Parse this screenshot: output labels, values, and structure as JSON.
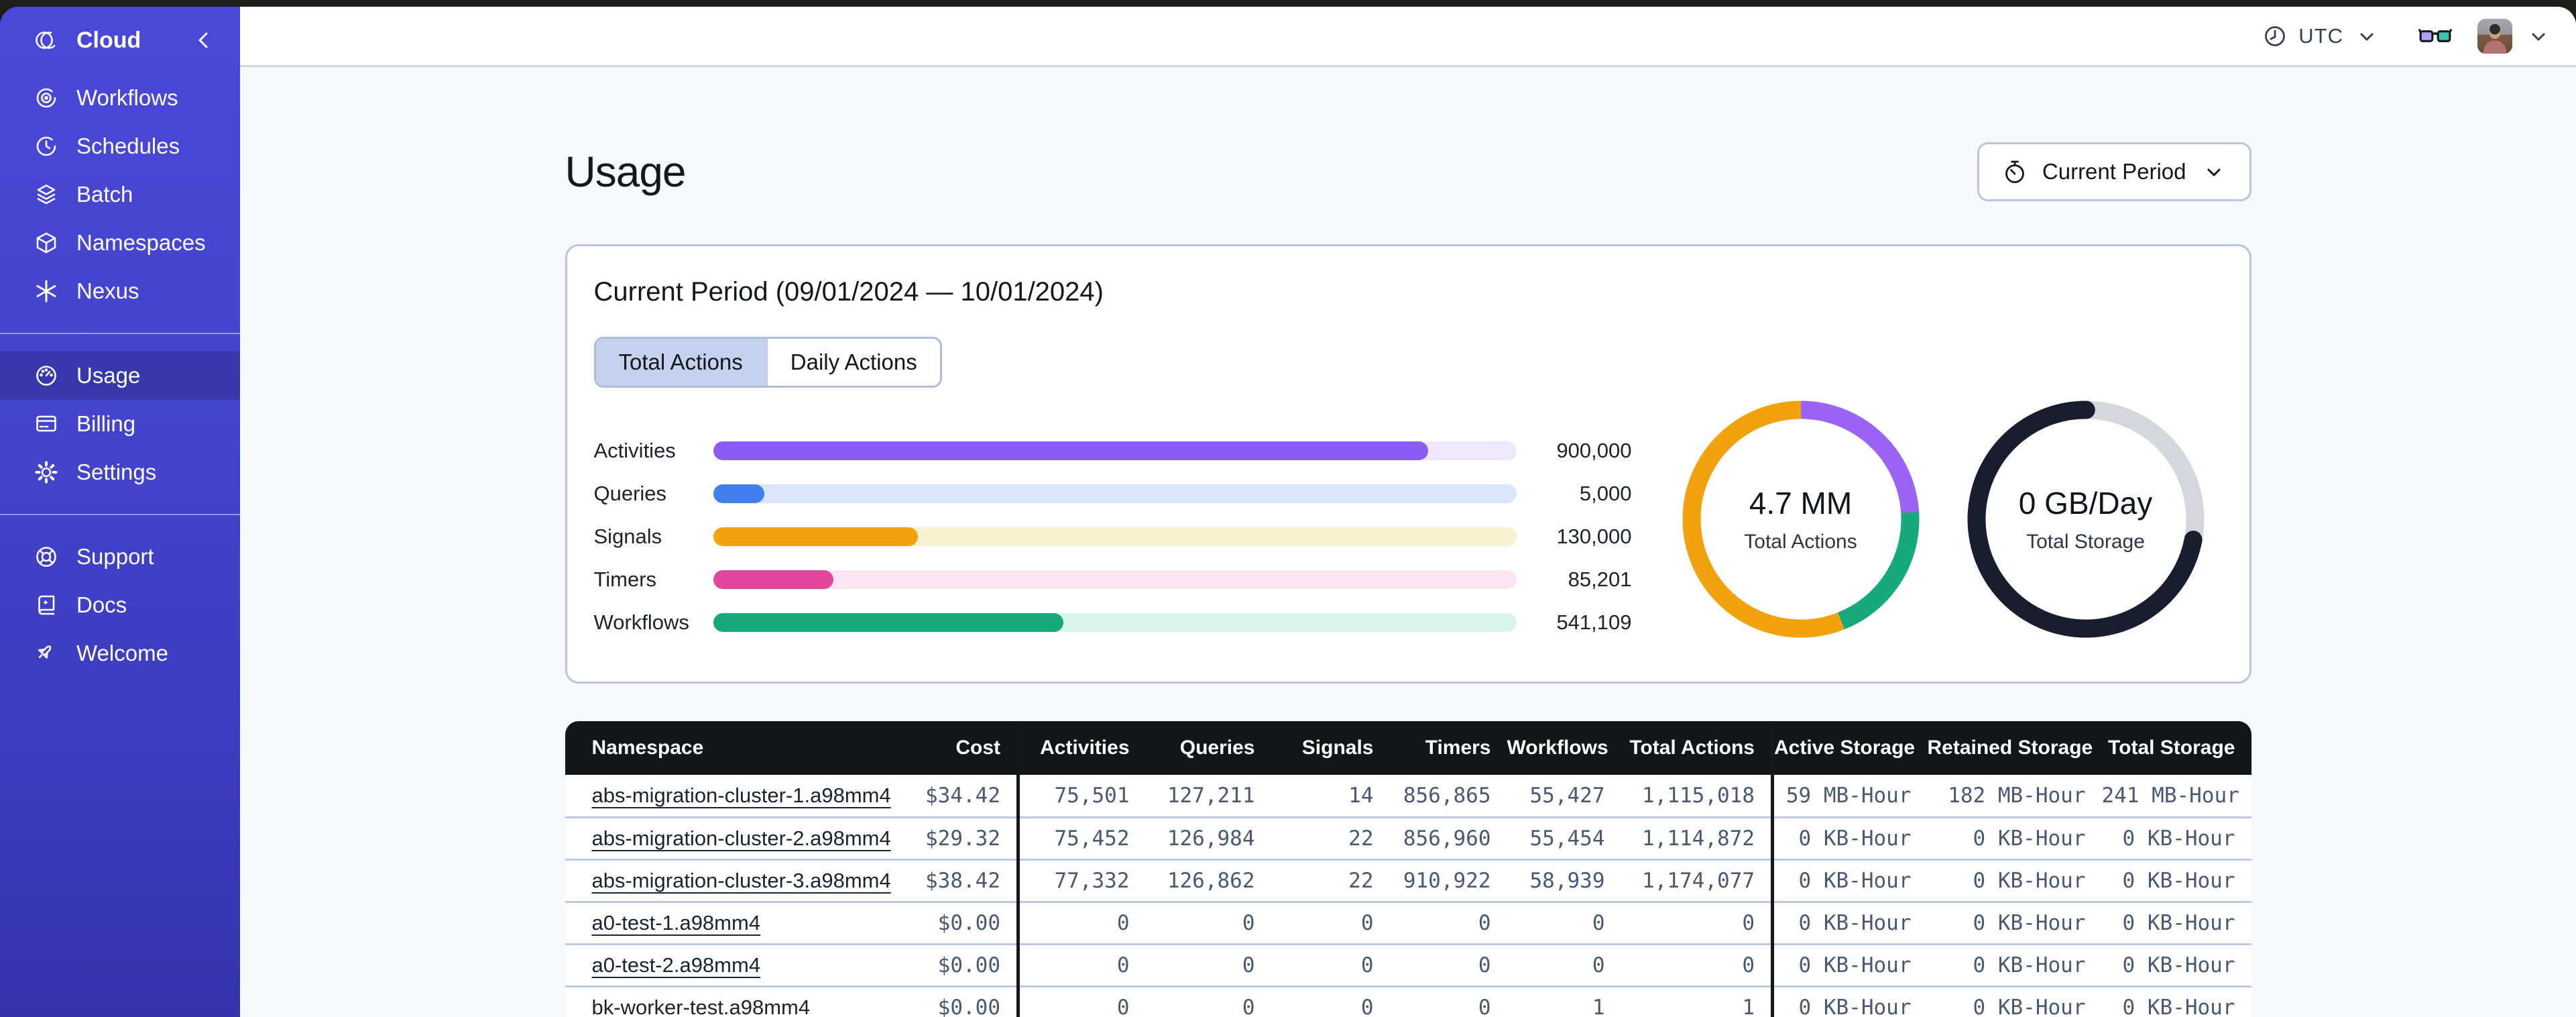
{
  "colors": {
    "sidebar_top": "#4a48d8",
    "sidebar_bottom": "#3334ab",
    "sidebar_active": "#393bbb",
    "page_bg": "#f7f8fb",
    "card_border": "#b9c4de",
    "tab_selected_bg": "#c5d2ee",
    "table_header_bg": "#141519",
    "table_text": "#4b5872",
    "row_divider": "#bcc8e4",
    "glasses_left_lens": "#b4a0f5",
    "glasses_right_lens": "#3ec2ae"
  },
  "sidebar": {
    "brand": {
      "label": "Cloud",
      "logo_icon": "temporal-logo",
      "collapse_icon": "chevron-left"
    },
    "groups": [
      {
        "items": [
          {
            "icon": "workflows",
            "label": "Workflows",
            "active": false
          },
          {
            "icon": "schedules",
            "label": "Schedules",
            "active": false
          },
          {
            "icon": "batch",
            "label": "Batch",
            "active": false
          },
          {
            "icon": "namespaces",
            "label": "Namespaces",
            "active": false
          },
          {
            "icon": "nexus",
            "label": "Nexus",
            "active": false
          }
        ]
      },
      {
        "items": [
          {
            "icon": "usage",
            "label": "Usage",
            "active": true
          },
          {
            "icon": "billing",
            "label": "Billing",
            "active": false
          },
          {
            "icon": "settings",
            "label": "Settings",
            "active": false
          }
        ]
      },
      {
        "items": [
          {
            "icon": "support",
            "label": "Support",
            "active": false
          },
          {
            "icon": "docs",
            "label": "Docs",
            "active": false
          },
          {
            "icon": "welcome",
            "label": "Welcome",
            "active": false
          }
        ]
      }
    ]
  },
  "topbar": {
    "timezone": "UTC",
    "timezone_icon": "clock",
    "feedback_icon": "glasses",
    "avatar": "user-avatar"
  },
  "page": {
    "title": "Usage",
    "period_button": {
      "label": "Current Period",
      "icon": "stopwatch"
    }
  },
  "card": {
    "title": "Current Period (09/01/2024 — 10/01/2024)",
    "tabs": [
      {
        "label": "Total Actions",
        "active": true
      },
      {
        "label": "Daily Actions",
        "active": false
      }
    ]
  },
  "chart_data": [
    {
      "type": "bar",
      "orientation": "horizontal",
      "title": "Actions by type (current period)",
      "categories": [
        "Activities",
        "Queries",
        "Signals",
        "Timers",
        "Workflows"
      ],
      "values": [
        900000,
        5000,
        130000,
        85201,
        541109
      ],
      "display_values": [
        "900,000",
        "5,000",
        "130,000",
        "85,201",
        "541,109"
      ],
      "fill_pct": [
        89,
        6.4,
        25.5,
        15,
        43.6
      ],
      "colors": [
        "#8a5cf2",
        "#417fed",
        "#f2a20d",
        "#e2479c",
        "#16a97a"
      ],
      "track_colors": [
        "#eee7fd",
        "#dbe6fa",
        "#faf0cf",
        "#fbe4f3",
        "#d8f5e9"
      ]
    },
    {
      "type": "donut",
      "center_value": "4.7 MM",
      "center_label": "Total Actions",
      "segments": [
        {
          "name": "activities",
          "color": "#9a63f5",
          "pct": 24
        },
        {
          "name": "workflows",
          "color": "#16a97a",
          "pct": 20
        },
        {
          "name": "signals-timers",
          "color": "#f2a20d",
          "pct": 56
        }
      ]
    },
    {
      "type": "donut",
      "center_value": "0 GB/Day",
      "center_label": "Total Storage",
      "segments": [
        {
          "name": "free",
          "color": "#d6d7dc",
          "pct": 28
        },
        {
          "name": "used",
          "color": "#1a1d30",
          "pct": 72,
          "cap": "round"
        }
      ]
    }
  ],
  "table": {
    "columns": [
      {
        "label": "Namespace",
        "align": "left"
      },
      {
        "label": "Cost"
      },
      {
        "label": "Activities",
        "divider": true
      },
      {
        "label": "Queries"
      },
      {
        "label": "Signals"
      },
      {
        "label": "Timers"
      },
      {
        "label": "Workflows"
      },
      {
        "label": "Total Actions"
      },
      {
        "label": "Active Storage",
        "divider": true
      },
      {
        "label": "Retained Storage"
      },
      {
        "label": "Total Storage"
      }
    ],
    "rows": [
      {
        "namespace": "abs-migration-cluster-1.a98mm4",
        "cells": [
          "$34.42",
          "75,501",
          "127,211",
          "14",
          "856,865",
          "55,427",
          "1,115,018",
          "59 MB-Hour",
          "182 MB-Hour",
          "241 MB-Hour"
        ]
      },
      {
        "namespace": "abs-migration-cluster-2.a98mm4",
        "cells": [
          "$29.32",
          "75,452",
          "126,984",
          "22",
          "856,960",
          "55,454",
          "1,114,872",
          "0 KB-Hour",
          "0 KB-Hour",
          "0 KB-Hour"
        ]
      },
      {
        "namespace": "abs-migration-cluster-3.a98mm4",
        "cells": [
          "$38.42",
          "77,332",
          "126,862",
          "22",
          "910,922",
          "58,939",
          "1,174,077",
          "0 KB-Hour",
          "0 KB-Hour",
          "0 KB-Hour"
        ]
      },
      {
        "namespace": "a0-test-1.a98mm4",
        "cells": [
          "$0.00",
          "0",
          "0",
          "0",
          "0",
          "0",
          "0",
          "0 KB-Hour",
          "0 KB-Hour",
          "0 KB-Hour"
        ]
      },
      {
        "namespace": "a0-test-2.a98mm4",
        "cells": [
          "$0.00",
          "0",
          "0",
          "0",
          "0",
          "0",
          "0",
          "0 KB-Hour",
          "0 KB-Hour",
          "0 KB-Hour"
        ]
      },
      {
        "namespace": "bk-worker-test.a98mm4",
        "cells": [
          "$0.00",
          "0",
          "0",
          "0",
          "0",
          "1",
          "1",
          "0 KB-Hour",
          "0 KB-Hour",
          "0 KB-Hour"
        ]
      }
    ]
  }
}
